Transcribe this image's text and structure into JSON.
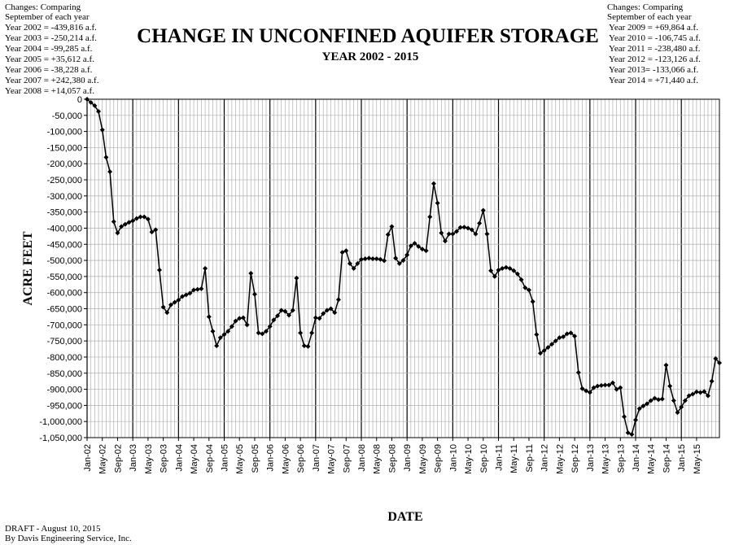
{
  "chart_data": {
    "type": "line",
    "title": "CHANGE IN UNCONFINED AQUIFER STORAGE",
    "subtitle": "YEAR 2002 - 2015",
    "xlabel": "DATE",
    "ylabel": "ACRE FEET",
    "ylim": [
      -1050000,
      0
    ],
    "yticks": [
      "0",
      "-50,000",
      "-100,000",
      "-150,000",
      "-200,000",
      "-250,000",
      "-300,000",
      "-350,000",
      "-400,000",
      "-450,000",
      "-500,000",
      "-550,000",
      "-600,000",
      "-650,000",
      "-700,000",
      "-750,000",
      "-800,000",
      "-850,000",
      "-900,000",
      "-950,000",
      "-1,000,000",
      "-1,050,000"
    ],
    "xticks": [
      "Jan-02",
      "May-02",
      "Sep-02",
      "Jan-03",
      "May-03",
      "Sep-03",
      "Jan-04",
      "May-04",
      "Sep-04",
      "Jan-05",
      "May-05",
      "Sep-05",
      "Jan-06",
      "May-06",
      "Sep-06",
      "Jan-07",
      "May-07",
      "Sep-07",
      "Jan-08",
      "May-08",
      "Sep-08",
      "Jan-09",
      "May-09",
      "Sep-09",
      "Jan-10",
      "May-10",
      "Sep-10",
      "Jan-11",
      "May-11",
      "Sep-11",
      "Jan-12",
      "May-12",
      "Sep-12",
      "Jan-13",
      "May-13",
      "Sep-13",
      "Jan-14",
      "May-14",
      "Sep-14",
      "Jan-15",
      "May-15"
    ],
    "grid": true,
    "x_start": "Jan-02",
    "x_end": "Sep-15",
    "series": [
      {
        "values": [
          0,
          -10000,
          -20000,
          -38000,
          -95000,
          -180000,
          -225000,
          -380000,
          -415000,
          -395000,
          -388000,
          -382000,
          -377000,
          -370000,
          -365000,
          -365000,
          -372000,
          -412000,
          -405000,
          -530000,
          -645000,
          -662000,
          -638000,
          -630000,
          -623000,
          -612000,
          -607000,
          -602000,
          -592000,
          -590000,
          -588000,
          -525000,
          -675000,
          -720000,
          -765000,
          -740000,
          -730000,
          -720000,
          -705000,
          -688000,
          -680000,
          -678000,
          -700000,
          -540000,
          -605000,
          -725000,
          -728000,
          -720000,
          -705000,
          -685000,
          -672000,
          -655000,
          -658000,
          -670000,
          -655000,
          -555000,
          -725000,
          -765000,
          -767000,
          -725000,
          -678000,
          -680000,
          -665000,
          -655000,
          -650000,
          -662000,
          -622000,
          -475000,
          -470000,
          -510000,
          -525000,
          -510000,
          -497000,
          -495000,
          -493000,
          -495000,
          -495000,
          -497000,
          -501000,
          -420000,
          -395000,
          -493000,
          -510000,
          -500000,
          -483000,
          -455000,
          -447000,
          -457000,
          -465000,
          -470000,
          -365000,
          -262000,
          -322000,
          -415000,
          -440000,
          -418000,
          -418000,
          -410000,
          -398000,
          -397000,
          -400000,
          -405000,
          -418000,
          -385000,
          -345000,
          -418000,
          -532000,
          -550000,
          -530000,
          -525000,
          -522000,
          -525000,
          -532000,
          -542000,
          -560000,
          -585000,
          -592000,
          -628000,
          -730000,
          -788000,
          -780000,
          -770000,
          -760000,
          -750000,
          -740000,
          -737000,
          -728000,
          -725000,
          -735000,
          -848000,
          -898000,
          -905000,
          -910000,
          -895000,
          -890000,
          -888000,
          -887000,
          -887000,
          -880000,
          -900000,
          -895000,
          -985000,
          -1035000,
          -1040000,
          -995000,
          -960000,
          -952000,
          -945000,
          -935000,
          -928000,
          -932000,
          -930000,
          -825000,
          -890000,
          -935000,
          -972000,
          -955000,
          -935000,
          -920000,
          -915000,
          -908000,
          -910000,
          -907000,
          -920000,
          -875000,
          -805000,
          -818000
        ]
      }
    ]
  },
  "notes_left": {
    "header1": "Changes: Comparing",
    "header2": "September of each year",
    "lines": [
      "Year 2002 = -439,816 a.f.",
      "Year 2003 = -250,214 a.f.",
      "Year 2004 = -99,285 a.f.",
      "Year 2005 = +35,612 a.f.",
      "Year 2006 = -38,228 a.f.",
      "Year 2007 = +242,380 a.f.",
      "Year 2008 = +14,057 a.f."
    ]
  },
  "notes_right": {
    "header1": "Changes: Comparing",
    "header2": "September of each year",
    "lines": [
      "Year 2009 = +69,864 a.f.",
      "Year 2010 = -106,745 a.f.",
      "Year 2011 = -238,480 a.f.",
      "Year 2012 = -123,126 a.f.",
      "Year 2013= -133,066 a.f.",
      "Year 2014 = +71,440 a.f."
    ]
  },
  "footer": {
    "line1": "DRAFT - August 10, 2015",
    "line2": "By Davis Engineering Service, Inc."
  },
  "colors": {
    "line": "#000000",
    "grid_major": "#000000",
    "grid_minor": "#b0b0b0"
  }
}
